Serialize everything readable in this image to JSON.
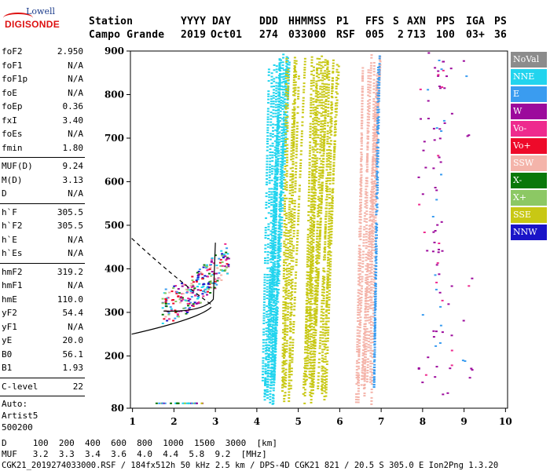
{
  "logo": {
    "line1": "Lowell",
    "line2": "DIGISONDE"
  },
  "header": {
    "row1": [
      "Station",
      "YYYY",
      "DAY",
      "DDD",
      "HHMMSS",
      "P1",
      "FFS",
      "S",
      "AXN",
      "PPS",
      "IGA",
      "PS"
    ],
    "row2": [
      "Campo Grande",
      "2019",
      "Oct01",
      "274",
      "033000",
      "RSF",
      "005",
      "2",
      "713",
      "100",
      "03+",
      "36"
    ]
  },
  "params": [
    {
      "k": "foF2",
      "v": "2.950"
    },
    {
      "k": "foF1",
      "v": "N/A"
    },
    {
      "k": "foF1p",
      "v": "N/A"
    },
    {
      "k": "foE",
      "v": "N/A"
    },
    {
      "k": "foEp",
      "v": "0.36"
    },
    {
      "k": "fxI",
      "v": "3.40"
    },
    {
      "k": "foEs",
      "v": "N/A"
    },
    {
      "k": "fmin",
      "v": "1.80"
    },
    {
      "sep": true
    },
    {
      "k": "MUF(D)",
      "v": "9.24"
    },
    {
      "k": "M(D)",
      "v": "3.13"
    },
    {
      "k": "D",
      "v": "N/A"
    },
    {
      "sep": true
    },
    {
      "k": "h`F",
      "v": "305.5"
    },
    {
      "k": "h`F2",
      "v": "305.5"
    },
    {
      "k": "h`E",
      "v": "N/A"
    },
    {
      "k": "h`Es",
      "v": "N/A"
    },
    {
      "sep": true
    },
    {
      "k": "hmF2",
      "v": "319.2"
    },
    {
      "k": "hmF1",
      "v": "N/A"
    },
    {
      "k": "hmE",
      "v": "110.0"
    },
    {
      "k": "yF2",
      "v": "54.4"
    },
    {
      "k": "yF1",
      "v": "N/A"
    },
    {
      "k": "yE",
      "v": "20.0"
    },
    {
      "k": "B0",
      "v": "56.1"
    },
    {
      "k": "B1",
      "v": "1.93"
    },
    {
      "sep": true
    },
    {
      "k": "C-level",
      "v": "22"
    },
    {
      "sep": true
    },
    {
      "text": "Auto:"
    },
    {
      "text": "Artist5"
    },
    {
      "text": "500200"
    }
  ],
  "legend": [
    {
      "label": "NoVal",
      "color": "#8c8c8c"
    },
    {
      "label": "NNE",
      "color": "#22d4ee"
    },
    {
      "label": "E",
      "color": "#3a9cf0"
    },
    {
      "label": "W",
      "color": "#9c0a9c"
    },
    {
      "label": "Vo-",
      "color": "#ee2a8e"
    },
    {
      "label": "Vo+",
      "color": "#ee0a2a"
    },
    {
      "label": "SSW",
      "color": "#f4b4aa"
    },
    {
      "label": "X-",
      "color": "#0a780a"
    },
    {
      "label": "X+",
      "color": "#8cc864"
    },
    {
      "label": "SSE",
      "color": "#c8c814"
    },
    {
      "label": "NNW",
      "color": "#1a14c8"
    }
  ],
  "axes": {
    "x_ticks": [
      "1",
      "2",
      "3",
      "4",
      "5",
      "6",
      "7",
      "8",
      "9",
      "10"
    ],
    "y_ticks": [
      "80",
      "200",
      "300",
      "400",
      "500",
      "600",
      "700",
      "800",
      "900"
    ],
    "xlim": [
      0.95,
      10.05
    ],
    "ylim": [
      80,
      900
    ]
  },
  "footer": {
    "d_line": "D     100  200  400  600  800  1000  1500  3000  [km]",
    "muf_line": "MUF   3.2  3.3  3.4  3.6  4.0  4.4  5.8  9.2  [MHz]",
    "info_line": "CGK21_2019274033000.RSF / 184fx512h 50 kHz 2.5 km / DPS-4D CGK21 821 / 20.5 S 305.0 E Ion2Png 1.3.20"
  }
}
